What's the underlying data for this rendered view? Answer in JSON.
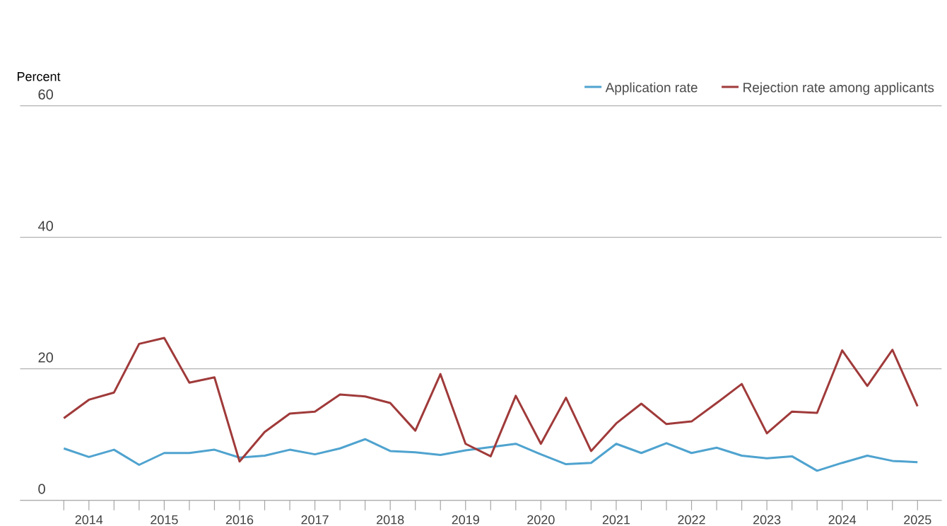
{
  "chart_data": {
    "type": "line",
    "ylabel": "Percent",
    "categories": [
      null,
      "2014",
      null,
      null,
      "2015",
      null,
      null,
      "2016",
      null,
      null,
      "2017",
      null,
      null,
      "2018",
      null,
      null,
      "2019",
      null,
      null,
      "2020",
      null,
      null,
      "2021",
      null,
      null,
      "2022",
      null,
      null,
      "2023",
      null,
      null,
      "2024",
      null,
      null,
      "2025"
    ],
    "series": [
      {
        "name": "Application rate",
        "color": "#4fa3cf",
        "values": [
          7.9,
          6.6,
          7.7,
          5.4,
          7.2,
          7.2,
          7.7,
          6.5,
          6.8,
          7.7,
          7.0,
          7.9,
          9.3,
          7.5,
          7.3,
          6.9,
          7.6,
          8.1,
          8.6,
          7.0,
          5.5,
          5.7,
          8.6,
          7.2,
          8.7,
          7.2,
          8.0,
          6.8,
          6.4,
          6.7,
          4.5,
          5.7,
          6.8,
          6.0,
          5.8
        ]
      },
      {
        "name": "Rejection rate among applicants",
        "color": "#a03a3a",
        "values": [
          12.5,
          15.3,
          16.4,
          23.8,
          24.7,
          17.9,
          18.7,
          5.9,
          10.4,
          13.2,
          13.5,
          16.1,
          15.8,
          14.8,
          10.6,
          19.2,
          8.6,
          6.7,
          15.9,
          8.6,
          15.6,
          7.5,
          11.7,
          14.7,
          11.6,
          12.0,
          14.8,
          17.7,
          10.2,
          13.5,
          13.3,
          22.8,
          17.4,
          22.9,
          14.3
        ]
      }
    ],
    "ylim": [
      0,
      60
    ],
    "yticks": [
      0,
      20,
      40,
      60
    ],
    "grid": "y",
    "legend": "top right"
  }
}
